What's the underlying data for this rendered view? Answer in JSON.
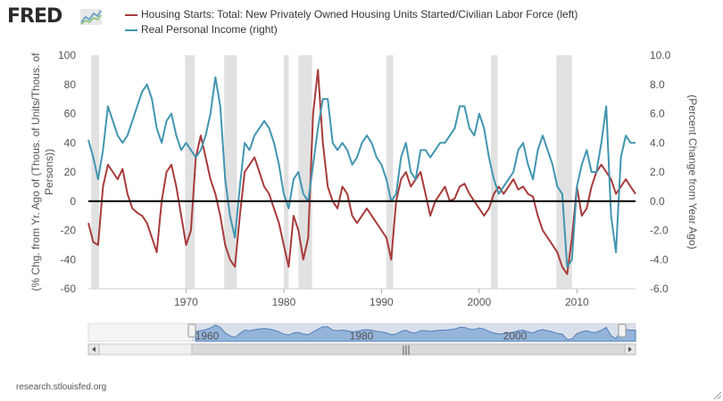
{
  "brand": {
    "logo": "FRED"
  },
  "footer": {
    "source": "research.stlouisfed.org"
  },
  "colors": {
    "housing": "#a83b3b",
    "income": "#4295b0",
    "recession": "#e1e1e1",
    "zero_line": "#000000",
    "navigator_fill": "#9fbfe0",
    "navigator_line": "#4f7fb8"
  },
  "chart_data": {
    "type": "line",
    "xlim": [
      1960,
      2016
    ],
    "x_ticks": [
      "1970",
      "1980",
      "1990",
      "2000",
      "2010"
    ],
    "navigator_ticks": [
      "1960",
      "1980",
      "2000"
    ],
    "y_left": {
      "label": "(% Chg. from Yr. Ago of (Thous. of Units/Thous. of Persons))",
      "ylim": [
        -60,
        100
      ],
      "ticks": [
        "-60",
        "-40",
        "-20",
        "0",
        "20",
        "40",
        "60",
        "80",
        "100"
      ]
    },
    "y_right": {
      "label": "(Percent Change from Year Ago)",
      "ylim": [
        -6,
        10
      ],
      "ticks": [
        "-6.0",
        "-4.0",
        "-2.0",
        "0.0",
        "2.0",
        "4.0",
        "6.0",
        "8.0",
        "10.0"
      ]
    },
    "recessions": [
      [
        1960.3,
        1961.1
      ],
      [
        1969.9,
        1970.9
      ],
      [
        1973.9,
        1975.2
      ],
      [
        1980.0,
        1980.5
      ],
      [
        1981.5,
        1982.9
      ],
      [
        1990.5,
        1991.2
      ],
      [
        2001.2,
        2001.9
      ],
      [
        2007.9,
        2009.5
      ]
    ],
    "series": [
      {
        "name": "Housing Starts: Total: New Privately Owned Housing Units Started/Civilian Labor Force (left)",
        "axis": "left",
        "points": [
          [
            1960.0,
            -15
          ],
          [
            1960.5,
            -28
          ],
          [
            1961.0,
            -30
          ],
          [
            1961.5,
            10
          ],
          [
            1962.0,
            25
          ],
          [
            1962.5,
            20
          ],
          [
            1963.0,
            15
          ],
          [
            1963.5,
            22
          ],
          [
            1964.0,
            5
          ],
          [
            1964.5,
            -5
          ],
          [
            1965.0,
            -8
          ],
          [
            1965.5,
            -10
          ],
          [
            1966.0,
            -15
          ],
          [
            1966.5,
            -25
          ],
          [
            1967.0,
            -35
          ],
          [
            1967.5,
            0
          ],
          [
            1968.0,
            20
          ],
          [
            1968.5,
            25
          ],
          [
            1969.0,
            10
          ],
          [
            1969.5,
            -10
          ],
          [
            1970.0,
            -30
          ],
          [
            1970.5,
            -20
          ],
          [
            1971.0,
            30
          ],
          [
            1971.5,
            45
          ],
          [
            1972.0,
            30
          ],
          [
            1972.5,
            15
          ],
          [
            1973.0,
            5
          ],
          [
            1973.5,
            -10
          ],
          [
            1974.0,
            -30
          ],
          [
            1974.5,
            -40
          ],
          [
            1975.0,
            -45
          ],
          [
            1975.5,
            -10
          ],
          [
            1976.0,
            20
          ],
          [
            1976.5,
            25
          ],
          [
            1977.0,
            30
          ],
          [
            1977.5,
            20
          ],
          [
            1978.0,
            10
          ],
          [
            1978.5,
            5
          ],
          [
            1979.0,
            -5
          ],
          [
            1979.5,
            -15
          ],
          [
            1980.0,
            -30
          ],
          [
            1980.5,
            -45
          ],
          [
            1981.0,
            -10
          ],
          [
            1981.5,
            -20
          ],
          [
            1982.0,
            -40
          ],
          [
            1982.5,
            -25
          ],
          [
            1983.0,
            60
          ],
          [
            1983.5,
            90
          ],
          [
            1984.0,
            40
          ],
          [
            1984.5,
            10
          ],
          [
            1985.0,
            0
          ],
          [
            1985.5,
            -5
          ],
          [
            1986.0,
            10
          ],
          [
            1986.5,
            5
          ],
          [
            1987.0,
            -10
          ],
          [
            1987.5,
            -15
          ],
          [
            1988.0,
            -10
          ],
          [
            1988.5,
            -5
          ],
          [
            1989.0,
            -10
          ],
          [
            1989.5,
            -15
          ],
          [
            1990.0,
            -20
          ],
          [
            1990.5,
            -25
          ],
          [
            1991.0,
            -40
          ],
          [
            1991.5,
            0
          ],
          [
            1992.0,
            15
          ],
          [
            1992.5,
            20
          ],
          [
            1993.0,
            10
          ],
          [
            1993.5,
            15
          ],
          [
            1994.0,
            20
          ],
          [
            1994.5,
            5
          ],
          [
            1995.0,
            -10
          ],
          [
            1995.5,
            0
          ],
          [
            1996.0,
            5
          ],
          [
            1996.5,
            10
          ],
          [
            1997.0,
            0
          ],
          [
            1997.5,
            2
          ],
          [
            1998.0,
            10
          ],
          [
            1998.5,
            12
          ],
          [
            1999.0,
            5
          ],
          [
            1999.5,
            0
          ],
          [
            2000.0,
            -5
          ],
          [
            2000.5,
            -10
          ],
          [
            2001.0,
            -5
          ],
          [
            2001.5,
            5
          ],
          [
            2002.0,
            10
          ],
          [
            2002.5,
            5
          ],
          [
            2003.0,
            10
          ],
          [
            2003.5,
            15
          ],
          [
            2004.0,
            8
          ],
          [
            2004.5,
            10
          ],
          [
            2005.0,
            5
          ],
          [
            2005.5,
            3
          ],
          [
            2006.0,
            -10
          ],
          [
            2006.5,
            -20
          ],
          [
            2007.0,
            -25
          ],
          [
            2007.5,
            -30
          ],
          [
            2008.0,
            -35
          ],
          [
            2008.5,
            -45
          ],
          [
            2009.0,
            -50
          ],
          [
            2009.5,
            -25
          ],
          [
            2010.0,
            10
          ],
          [
            2010.5,
            -10
          ],
          [
            2011.0,
            -5
          ],
          [
            2011.5,
            10
          ],
          [
            2012.0,
            20
          ],
          [
            2012.5,
            25
          ],
          [
            2013.0,
            20
          ],
          [
            2013.5,
            15
          ],
          [
            2014.0,
            5
          ],
          [
            2014.5,
            10
          ],
          [
            2015.0,
            15
          ],
          [
            2015.5,
            10
          ],
          [
            2016.0,
            5
          ]
        ]
      },
      {
        "name": "Real Personal Income (right)",
        "axis": "right",
        "points": [
          [
            1960.0,
            4.2
          ],
          [
            1960.5,
            3.0
          ],
          [
            1961.0,
            1.5
          ],
          [
            1961.5,
            3.5
          ],
          [
            1962.0,
            6.5
          ],
          [
            1962.5,
            5.5
          ],
          [
            1963.0,
            4.5
          ],
          [
            1963.5,
            4.0
          ],
          [
            1964.0,
            4.5
          ],
          [
            1964.5,
            5.5
          ],
          [
            1965.0,
            6.5
          ],
          [
            1965.5,
            7.5
          ],
          [
            1966.0,
            8.0
          ],
          [
            1966.5,
            7.0
          ],
          [
            1967.0,
            5.0
          ],
          [
            1967.5,
            4.0
          ],
          [
            1968.0,
            5.5
          ],
          [
            1968.5,
            6.0
          ],
          [
            1969.0,
            4.5
          ],
          [
            1969.5,
            3.5
          ],
          [
            1970.0,
            4.0
          ],
          [
            1970.5,
            3.5
          ],
          [
            1971.0,
            3.0
          ],
          [
            1971.5,
            3.5
          ],
          [
            1972.0,
            4.5
          ],
          [
            1972.5,
            6.0
          ],
          [
            1973.0,
            8.5
          ],
          [
            1973.5,
            6.5
          ],
          [
            1974.0,
            1.5
          ],
          [
            1974.5,
            -1.0
          ],
          [
            1975.0,
            -2.5
          ],
          [
            1975.5,
            1.0
          ],
          [
            1976.0,
            4.0
          ],
          [
            1976.5,
            3.5
          ],
          [
            1977.0,
            4.5
          ],
          [
            1977.5,
            5.0
          ],
          [
            1978.0,
            5.5
          ],
          [
            1978.5,
            5.0
          ],
          [
            1979.0,
            4.0
          ],
          [
            1979.5,
            2.5
          ],
          [
            1980.0,
            0.5
          ],
          [
            1980.5,
            -0.5
          ],
          [
            1981.0,
            1.5
          ],
          [
            1981.5,
            2.0
          ],
          [
            1982.0,
            0.5
          ],
          [
            1982.5,
            0.0
          ],
          [
            1983.0,
            2.5
          ],
          [
            1983.5,
            5.0
          ],
          [
            1984.0,
            7.0
          ],
          [
            1984.5,
            7.0
          ],
          [
            1985.0,
            4.0
          ],
          [
            1985.5,
            3.5
          ],
          [
            1986.0,
            4.0
          ],
          [
            1986.5,
            3.5
          ],
          [
            1987.0,
            2.5
          ],
          [
            1987.5,
            3.0
          ],
          [
            1988.0,
            4.0
          ],
          [
            1988.5,
            4.5
          ],
          [
            1989.0,
            4.0
          ],
          [
            1989.5,
            3.0
          ],
          [
            1990.0,
            2.5
          ],
          [
            1990.5,
            1.5
          ],
          [
            1991.0,
            0.0
          ],
          [
            1991.5,
            0.5
          ],
          [
            1992.0,
            3.0
          ],
          [
            1992.5,
            4.0
          ],
          [
            1993.0,
            2.0
          ],
          [
            1993.5,
            1.5
          ],
          [
            1994.0,
            3.5
          ],
          [
            1994.5,
            3.5
          ],
          [
            1995.0,
            3.0
          ],
          [
            1995.5,
            3.5
          ],
          [
            1996.0,
            4.0
          ],
          [
            1996.5,
            4.0
          ],
          [
            1997.0,
            4.5
          ],
          [
            1997.5,
            5.0
          ],
          [
            1998.0,
            6.5
          ],
          [
            1998.5,
            6.5
          ],
          [
            1999.0,
            5.0
          ],
          [
            1999.5,
            4.5
          ],
          [
            2000.0,
            6.0
          ],
          [
            2000.5,
            5.0
          ],
          [
            2001.0,
            3.0
          ],
          [
            2001.5,
            1.5
          ],
          [
            2002.0,
            0.5
          ],
          [
            2002.5,
            1.0
          ],
          [
            2003.0,
            1.5
          ],
          [
            2003.5,
            2.0
          ],
          [
            2004.0,
            3.5
          ],
          [
            2004.5,
            4.0
          ],
          [
            2005.0,
            2.5
          ],
          [
            2005.5,
            1.5
          ],
          [
            2006.0,
            3.5
          ],
          [
            2006.5,
            4.5
          ],
          [
            2007.0,
            3.5
          ],
          [
            2007.5,
            2.5
          ],
          [
            2008.0,
            1.0
          ],
          [
            2008.5,
            0.5
          ],
          [
            2009.0,
            -4.5
          ],
          [
            2009.5,
            -4.0
          ],
          [
            2010.0,
            1.0
          ],
          [
            2010.5,
            2.5
          ],
          [
            2011.0,
            3.5
          ],
          [
            2011.5,
            2.0
          ],
          [
            2012.0,
            2.0
          ],
          [
            2012.5,
            4.0
          ],
          [
            2013.0,
            6.5
          ],
          [
            2013.5,
            -1.0
          ],
          [
            2014.0,
            -3.5
          ],
          [
            2014.5,
            3.0
          ],
          [
            2015.0,
            4.5
          ],
          [
            2015.5,
            4.0
          ],
          [
            2016.0,
            4.0
          ]
        ]
      }
    ]
  }
}
